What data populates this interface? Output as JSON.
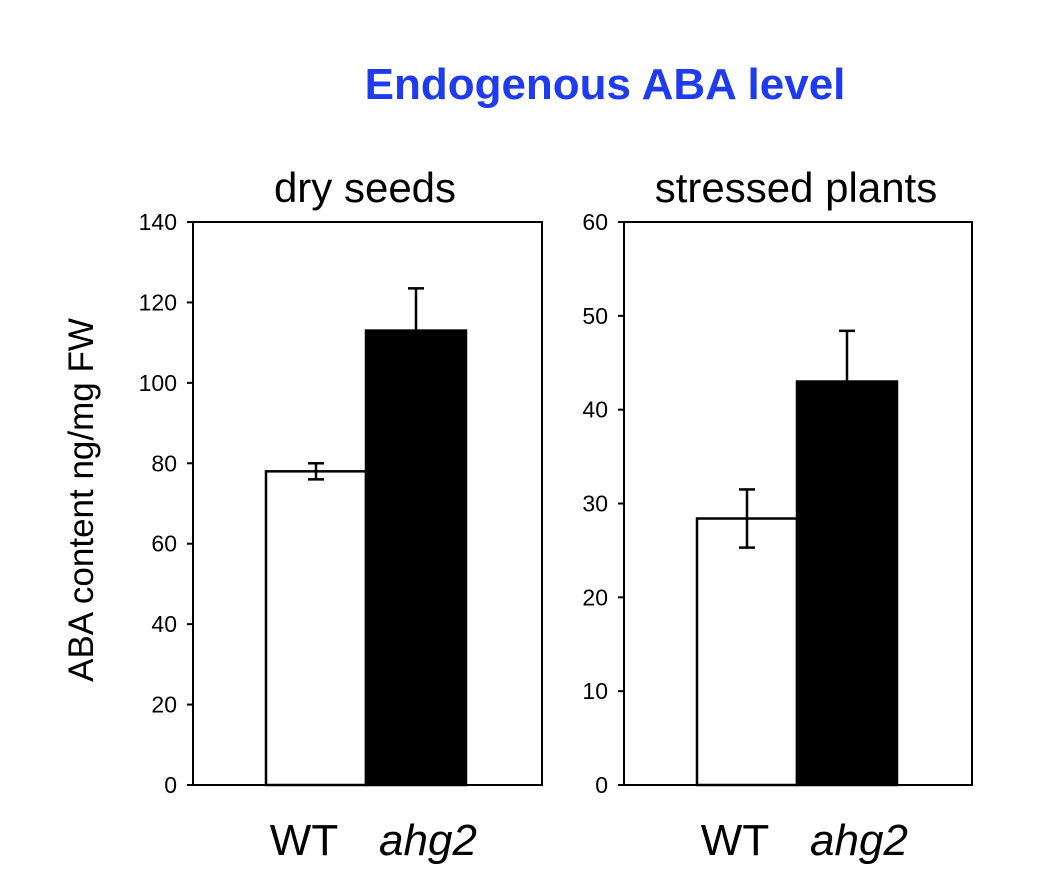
{
  "title": "Endogenous ABA level",
  "ylabel": "ABA content ng/mg FW",
  "colors": {
    "title": "#1f3bf0",
    "wt_bar": "#ffffff",
    "ahg2_bar": "#000000",
    "axis": "#000000"
  },
  "chart_data": [
    {
      "type": "bar",
      "title": "dry seeds",
      "categories": [
        "WT",
        "ahg2"
      ],
      "values": [
        78,
        113
      ],
      "errors": [
        2,
        10.5
      ],
      "ylim": [
        0,
        140
      ],
      "yticks": [
        0,
        20,
        40,
        60,
        80,
        100,
        120,
        140
      ],
      "ylabel": "ABA content ng/mg FW",
      "xlabel": "",
      "grid": false
    },
    {
      "type": "bar",
      "title": "stressed plants",
      "categories": [
        "WT",
        "ahg2"
      ],
      "values": [
        28.4,
        43
      ],
      "errors": [
        3.1,
        5.4
      ],
      "ylim": [
        0,
        60
      ],
      "yticks": [
        0,
        10,
        20,
        30,
        40,
        50,
        60
      ],
      "ylabel": "",
      "xlabel": "",
      "grid": false
    }
  ]
}
